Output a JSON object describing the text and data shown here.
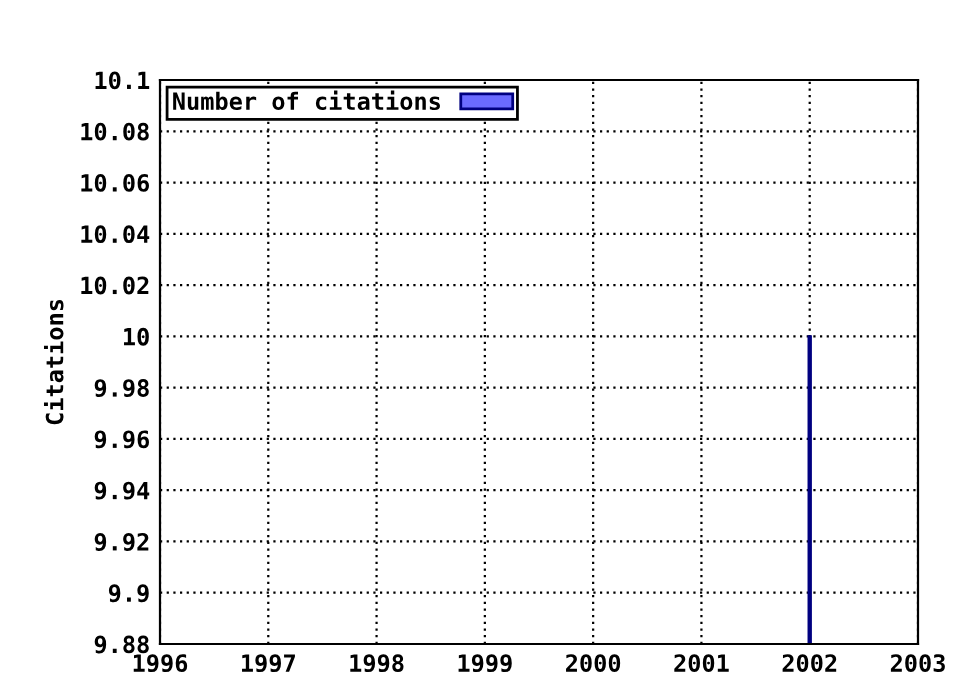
{
  "chart_data": {
    "type": "bar",
    "ylabel": "Citations",
    "x": [
      2002
    ],
    "series": [
      {
        "name": "Number of citations",
        "color": "#6b6bff",
        "values": [
          10
        ]
      }
    ],
    "xlim": [
      1996,
      2003
    ],
    "xticks": [
      1996,
      1997,
      1998,
      1999,
      2000,
      2001,
      2002,
      2003
    ],
    "ylim": [
      9.88,
      10.1
    ],
    "yticks": [
      {
        "value": 9.88,
        "label": "9.88"
      },
      {
        "value": 9.9,
        "label": "9.9"
      },
      {
        "value": 9.92,
        "label": "9.92"
      },
      {
        "value": 9.94,
        "label": "9.94"
      },
      {
        "value": 9.96,
        "label": "9.96"
      },
      {
        "value": 9.98,
        "label": "9.98"
      },
      {
        "value": 10,
        "label": "10"
      },
      {
        "value": 10.02,
        "label": "10.02"
      },
      {
        "value": 10.04,
        "label": "10.04"
      },
      {
        "value": 10.06,
        "label": "10.06"
      },
      {
        "value": 10.08,
        "label": "10.08"
      },
      {
        "value": 10.1,
        "label": "10.1"
      }
    ],
    "grid": true,
    "legend": "top left"
  }
}
